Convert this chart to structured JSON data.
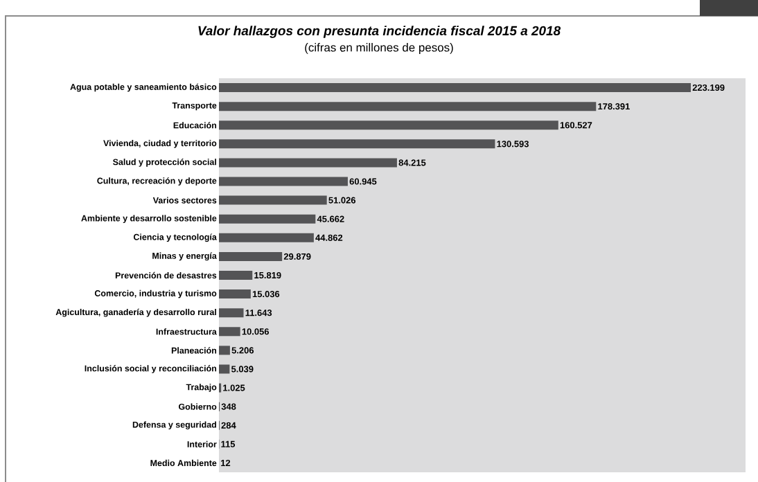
{
  "chart_data": {
    "type": "bar",
    "orientation": "horizontal",
    "title": "Valor hallazgos con presunta incidencia fiscal 2015 a 2018",
    "subtitle": "(cifras en millones de pesos)",
    "categories": [
      "Agua potable y saneamiento básico",
      "Transporte",
      "Educación",
      "Vivienda, ciudad y territorio",
      "Salud y protección social",
      "Cultura, recreación y deporte",
      "Varios sectores",
      "Ambiente y desarrollo sostenible",
      "Ciencia y tecnología",
      "Minas y energía",
      "Prevención de desastres",
      "Comercio, industria y turismo",
      "Agicultura, ganadería y desarrollo rural",
      "Infraestructura",
      "Planeación",
      "Inclusión social y reconciliación",
      "Trabajo",
      "Gobierno",
      "Defensa y seguridad",
      "Interior",
      "Medio Ambiente"
    ],
    "values": [
      223199,
      178391,
      160527,
      130593,
      84215,
      60945,
      51026,
      45662,
      44862,
      29879,
      15819,
      15036,
      11643,
      10056,
      5206,
      5039,
      1025,
      348,
      284,
      115,
      12
    ],
    "value_labels": [
      "223.199",
      "178.391",
      "160.527",
      "130.593",
      "84.215",
      "60.945",
      "51.026",
      "45.662",
      "44.862",
      "29.879",
      "15.819",
      "15.036",
      "11.643",
      "10.056",
      "5.206",
      "5.039",
      "1.025",
      "348",
      "284",
      "115",
      "12"
    ],
    "color": "#545456"
  }
}
